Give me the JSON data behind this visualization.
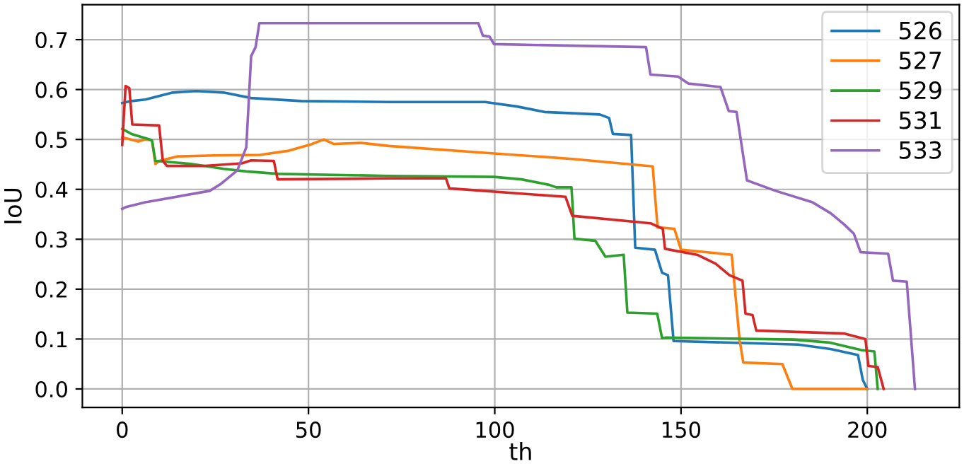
{
  "chart_data": {
    "type": "line",
    "xlabel": "th",
    "ylabel": "IoU",
    "xlim": [
      -10.7,
      224.7
    ],
    "ylim": [
      -0.037,
      0.77
    ],
    "xticks": [
      0,
      50,
      100,
      150,
      200
    ],
    "yticks": [
      {
        "value": 0,
        "label": "0.0"
      },
      0.1,
      0.2,
      0.3,
      0.4,
      0.5,
      0.6,
      0.7
    ],
    "grid": true,
    "legend": "top right",
    "series": [
      {
        "name": "526",
        "color": "#1f77b4",
        "x": [
          0,
          2.5,
          6.2,
          13.6,
          19.8,
          27.2,
          34.6,
          48.1,
          71.6,
          97.4,
          106,
          113.4,
          128.2,
          130.7,
          131.7,
          136.6,
          137.7,
          143,
          144.9,
          146.5,
          148,
          181.5,
          190.1,
          197.5,
          198.8,
          200
        ],
        "values": [
          0.573,
          0.577,
          0.58,
          0.594,
          0.597,
          0.594,
          0.583,
          0.577,
          0.575,
          0.575,
          0.566,
          0.555,
          0.55,
          0.543,
          0.511,
          0.509,
          0.283,
          0.279,
          0.233,
          0.228,
          0.096,
          0.089,
          0.08,
          0.068,
          0.018,
          0.0
        ]
      },
      {
        "name": "527",
        "color": "#ff7f0e",
        "x": [
          0,
          1.2,
          4.3,
          6.2,
          8,
          8.9,
          9.9,
          14.8,
          24.7,
          37,
          44.4,
          50.6,
          54.1,
          56.8,
          64.2,
          71.6,
          99.8,
          120.8,
          142.4,
          143.7,
          148.2,
          150,
          163.6,
          165.7,
          166.7,
          177.2,
          179.9,
          200
        ],
        "values": [
          0.504,
          0.502,
          0.496,
          0.5,
          0.498,
          0.451,
          0.457,
          0.466,
          0.468,
          0.469,
          0.477,
          0.49,
          0.5,
          0.491,
          0.493,
          0.487,
          0.472,
          0.461,
          0.446,
          0.324,
          0.321,
          0.279,
          0.269,
          0.1,
          0.053,
          0.05,
          0.0,
          0.0
        ]
      },
      {
        "name": "529",
        "color": "#2ca02c",
        "x": [
          0,
          2.5,
          7.4,
          8,
          8.9,
          18.5,
          27.2,
          33.3,
          42,
          71.6,
          99.8,
          107.2,
          114.6,
          116.5,
          120.6,
          121.4,
          127,
          129.7,
          134.6,
          135.6,
          143.6,
          144.9,
          146,
          180,
          189.8,
          198.4,
          201.9,
          202.8
        ],
        "values": [
          0.521,
          0.511,
          0.5,
          0.498,
          0.457,
          0.451,
          0.441,
          0.436,
          0.431,
          0.427,
          0.425,
          0.42,
          0.409,
          0.404,
          0.404,
          0.301,
          0.297,
          0.265,
          0.269,
          0.153,
          0.151,
          0.102,
          0.103,
          0.099,
          0.093,
          0.078,
          0.075,
          0.0
        ]
      },
      {
        "name": "531",
        "color": "#d62728",
        "x": [
          0,
          0.9,
          1.9,
          2.7,
          9.9,
          10.9,
          12,
          22.2,
          32.1,
          34.6,
          40.7,
          41.7,
          71.6,
          86.9,
          87.8,
          119,
          120.8,
          141.8,
          145.1,
          145.7,
          147,
          154.3,
          159.3,
          163,
          166.5,
          167.3,
          169.2,
          170.2,
          193.9,
          199.5,
          200.3,
          202.8,
          204.4
        ],
        "values": [
          0.489,
          0.607,
          0.603,
          0.53,
          0.528,
          0.457,
          0.447,
          0.447,
          0.452,
          0.458,
          0.457,
          0.42,
          0.422,
          0.422,
          0.402,
          0.385,
          0.347,
          0.332,
          0.321,
          0.281,
          0.279,
          0.269,
          0.251,
          0.228,
          0.217,
          0.151,
          0.148,
          0.117,
          0.111,
          0.1,
          0.046,
          0.044,
          0.0
        ]
      },
      {
        "name": "533",
        "color": "#9467bd",
        "x": [
          0,
          1.2,
          6.2,
          23.5,
          26.5,
          30.9,
          33.3,
          34.6,
          35.8,
          36.8,
          95.6,
          96.8,
          98.6,
          99.8,
          140.6,
          141.8,
          149.2,
          152,
          160.6,
          162.8,
          164.9,
          167.7,
          175.4,
          185.3,
          190.2,
          193.9,
          196.4,
          198.2,
          205.6,
          206.9,
          210.6,
          212.8
        ],
        "values": [
          0.361,
          0.365,
          0.374,
          0.397,
          0.411,
          0.438,
          0.484,
          0.667,
          0.685,
          0.733,
          0.733,
          0.708,
          0.706,
          0.691,
          0.685,
          0.63,
          0.626,
          0.612,
          0.605,
          0.557,
          0.555,
          0.418,
          0.397,
          0.374,
          0.352,
          0.329,
          0.311,
          0.274,
          0.271,
          0.217,
          0.215,
          0.0
        ]
      }
    ]
  }
}
